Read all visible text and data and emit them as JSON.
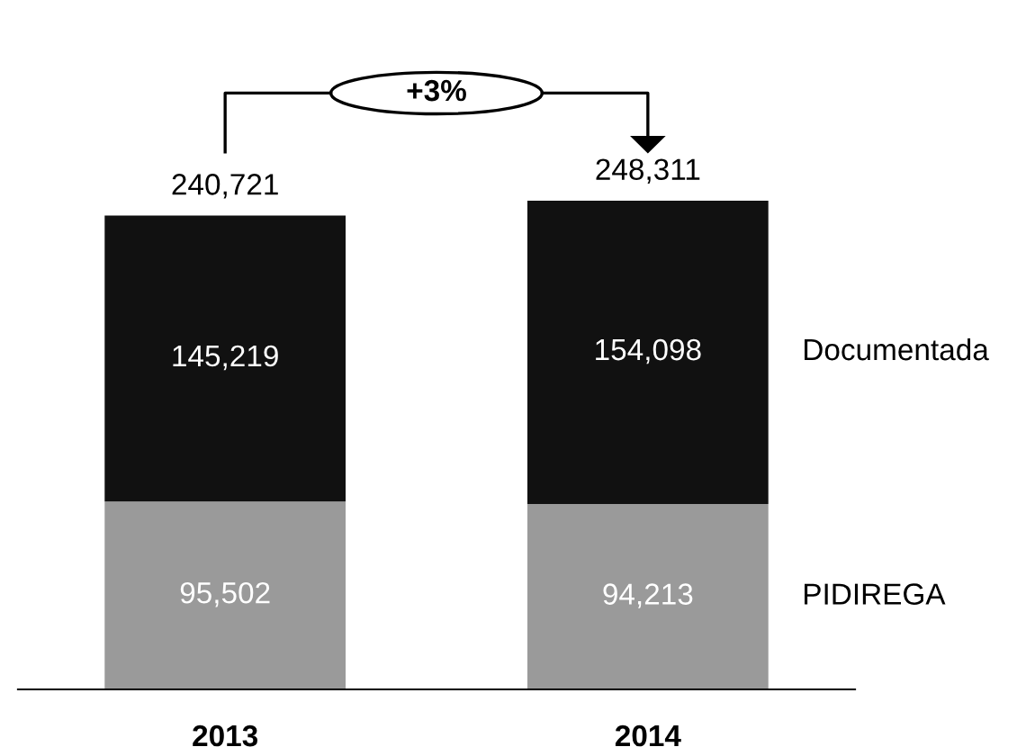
{
  "chart_data": {
    "type": "bar",
    "stacked": true,
    "categories": [
      "2013",
      "2014"
    ],
    "series": [
      {
        "name": "PIDIREGA",
        "color": "#9a9a9a",
        "values": [
          95502,
          94213
        ],
        "value_labels": [
          "95,502",
          "94,213"
        ]
      },
      {
        "name": "Documentada",
        "color": "#111111",
        "values": [
          145219,
          154098
        ],
        "value_labels": [
          "145,219",
          "154,098"
        ]
      }
    ],
    "totals": [
      "240,721",
      "248,311"
    ],
    "annotations": [
      "+3%"
    ],
    "legend": false,
    "grid": false
  }
}
